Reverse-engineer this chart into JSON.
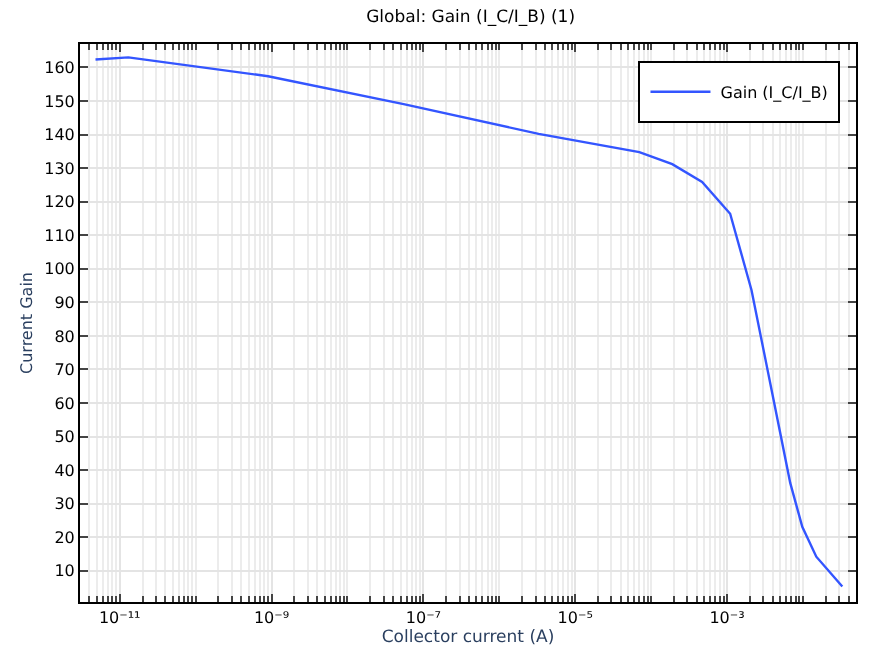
{
  "chart_data": {
    "type": "line",
    "title": "Global: Gain (I_C/I_B) (1)",
    "xlabel": "Collector current (A)",
    "ylabel": "Current Gain",
    "x": [
      4.8e-12,
      1.3e-11,
      9e-10,
      5.5e-08,
      3.3e-06,
      7e-05,
      0.00019,
      0.00047,
      0.0011,
      0.0021,
      0.005,
      0.0068,
      0.0098,
      0.015,
      0.033
    ],
    "series": [
      {
        "name": "Gain (I_C/I_B)",
        "color": "#3355ff",
        "values": [
          162.4,
          163,
          157.4,
          149.1,
          140.2,
          134.8,
          131.2,
          125.9,
          116.4,
          93.7,
          51.3,
          36.2,
          23.1,
          14.2,
          5.3
        ]
      }
    ],
    "log": "x",
    "xlim": [
      3e-12,
      0.05
    ],
    "ylim": [
      0.7,
      167
    ],
    "xticks": [
      {
        "value": 1e-11,
        "label": "10⁻¹¹"
      },
      {
        "value": 1e-09,
        "label": "10⁻⁹"
      },
      {
        "value": 1e-07,
        "label": "10⁻⁷"
      },
      {
        "value": 1e-05,
        "label": "10⁻⁵"
      },
      {
        "value": 0.001,
        "label": "10⁻³"
      }
    ],
    "yticks": [
      10,
      20,
      30,
      40,
      50,
      60,
      70,
      80,
      90,
      100,
      110,
      120,
      130,
      140,
      150,
      160
    ],
    "grid": true,
    "legend": "top right",
    "marker": "none",
    "line_style": "solid"
  }
}
